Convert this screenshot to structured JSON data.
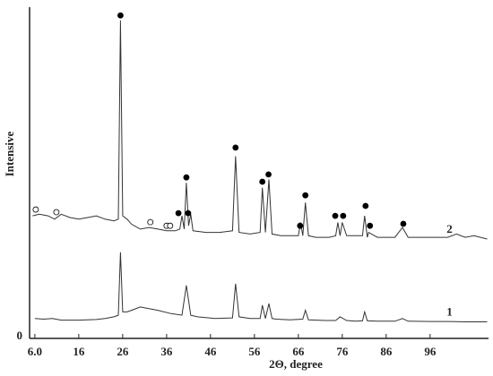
{
  "chart_data": {
    "type": "line",
    "x_label": "2Θ, degree",
    "y_label": "Intensive",
    "xlim": [
      4.8,
      109.3
    ],
    "xticks": [
      {
        "value": 6,
        "label": "6.0"
      },
      16,
      26,
      36,
      46,
      56,
      66,
      76,
      86,
      96
    ],
    "ylim": [
      0,
      100
    ],
    "yticks": [
      0
    ],
    "series": [
      {
        "name": "1",
        "color": "#333333",
        "x": [
          6,
          8,
          10,
          12,
          14,
          16,
          18,
          20,
          22,
          24,
          25,
          25.5,
          26,
          27,
          28,
          30,
          32,
          34,
          37,
          39.5,
          40.5,
          41.5,
          43,
          47,
          51,
          51.7,
          52.5,
          55,
          57.3,
          57.8,
          58.5,
          59.3,
          60,
          61,
          64,
          67,
          67.6,
          68.3,
          72,
          74.5,
          75.5,
          77,
          79,
          80.6,
          81.1,
          81.7,
          84,
          88,
          89.7,
          91,
          96,
          100,
          104,
          109
        ],
        "values": [
          6,
          5.8,
          6,
          5.5,
          5.5,
          5.5,
          5.6,
          5.7,
          6,
          6.5,
          7,
          26,
          8,
          8,
          8.5,
          9.5,
          9,
          8.5,
          7.5,
          7,
          16,
          7,
          6.5,
          6,
          6.2,
          16.5,
          6.5,
          6,
          6,
          10,
          6,
          10.5,
          6,
          5.8,
          5.6,
          5.8,
          8.5,
          5.6,
          5.4,
          5.4,
          6.5,
          5.4,
          5.2,
          5.3,
          8,
          5.3,
          5.2,
          5.2,
          6,
          5.2,
          5.1,
          5.1,
          5,
          5
        ]
      },
      {
        "name": "2",
        "color": "#333333",
        "x": [
          5.5,
          7,
          9,
          10.5,
          12,
          14,
          16,
          18,
          20,
          22,
          24,
          25,
          25.5,
          26,
          27,
          28,
          30,
          32,
          34,
          36,
          38,
          39,
          39.5,
          40,
          40.5,
          41,
          41.5,
          42,
          45,
          48,
          51,
          51.7,
          52.5,
          55,
          57.3,
          57.8,
          58.5,
          59.3,
          60,
          62,
          65,
          66,
          66.5,
          67,
          67.6,
          68.3,
          70,
          73,
          74.5,
          75,
          75.5,
          76,
          77,
          80,
          80.6,
          81.1,
          81.7,
          82,
          84,
          88,
          89.7,
          91,
          96,
          100,
          102,
          104,
          106,
          109
        ],
        "values": [
          37,
          37.5,
          37,
          36,
          37.5,
          36.5,
          36,
          36.5,
          37,
          36,
          35.5,
          36,
          96,
          37,
          36,
          34.5,
          33,
          33.5,
          33,
          32.5,
          32.5,
          33,
          37,
          33,
          47,
          34,
          37.5,
          32.5,
          32,
          32,
          32.5,
          55,
          32,
          31.5,
          32,
          45.5,
          32,
          48,
          31.5,
          31,
          31,
          31,
          35,
          31,
          41,
          31,
          30.5,
          30.5,
          31,
          35,
          31,
          35,
          31,
          31,
          31,
          37,
          30.5,
          32,
          30.5,
          30.5,
          33.5,
          30.5,
          30.5,
          30.5,
          31.5,
          30.5,
          31,
          30
        ]
      }
    ],
    "markers": [
      {
        "x": 25.5,
        "y": 97.5,
        "style": "filled"
      },
      {
        "x": 38.7,
        "y": 37.8,
        "style": "filled"
      },
      {
        "x": 40.5,
        "y": 48.6,
        "style": "filled"
      },
      {
        "x": 40.9,
        "y": 37.8,
        "style": "filled"
      },
      {
        "x": 51.7,
        "y": 57.6,
        "style": "filled"
      },
      {
        "x": 57.8,
        "y": 47.3,
        "style": "filled"
      },
      {
        "x": 59.2,
        "y": 49.5,
        "style": "filled"
      },
      {
        "x": 67.6,
        "y": 43.2,
        "style": "filled"
      },
      {
        "x": 66.4,
        "y": 34,
        "style": "filled"
      },
      {
        "x": 74.4,
        "y": 37,
        "style": "filled"
      },
      {
        "x": 76.2,
        "y": 37,
        "style": "filled"
      },
      {
        "x": 81.3,
        "y": 40,
        "style": "filled"
      },
      {
        "x": 82.3,
        "y": 34,
        "style": "filled"
      },
      {
        "x": 89.9,
        "y": 34.6,
        "style": "filled"
      },
      {
        "x": 6.2,
        "y": 38.9,
        "style": "open"
      },
      {
        "x": 10.9,
        "y": 38.1,
        "style": "open"
      },
      {
        "x": 32.3,
        "y": 35.1,
        "style": "open"
      },
      {
        "x": 36,
        "y": 34,
        "style": "open"
      },
      {
        "x": 36.8,
        "y": 34,
        "style": "open"
      }
    ]
  }
}
